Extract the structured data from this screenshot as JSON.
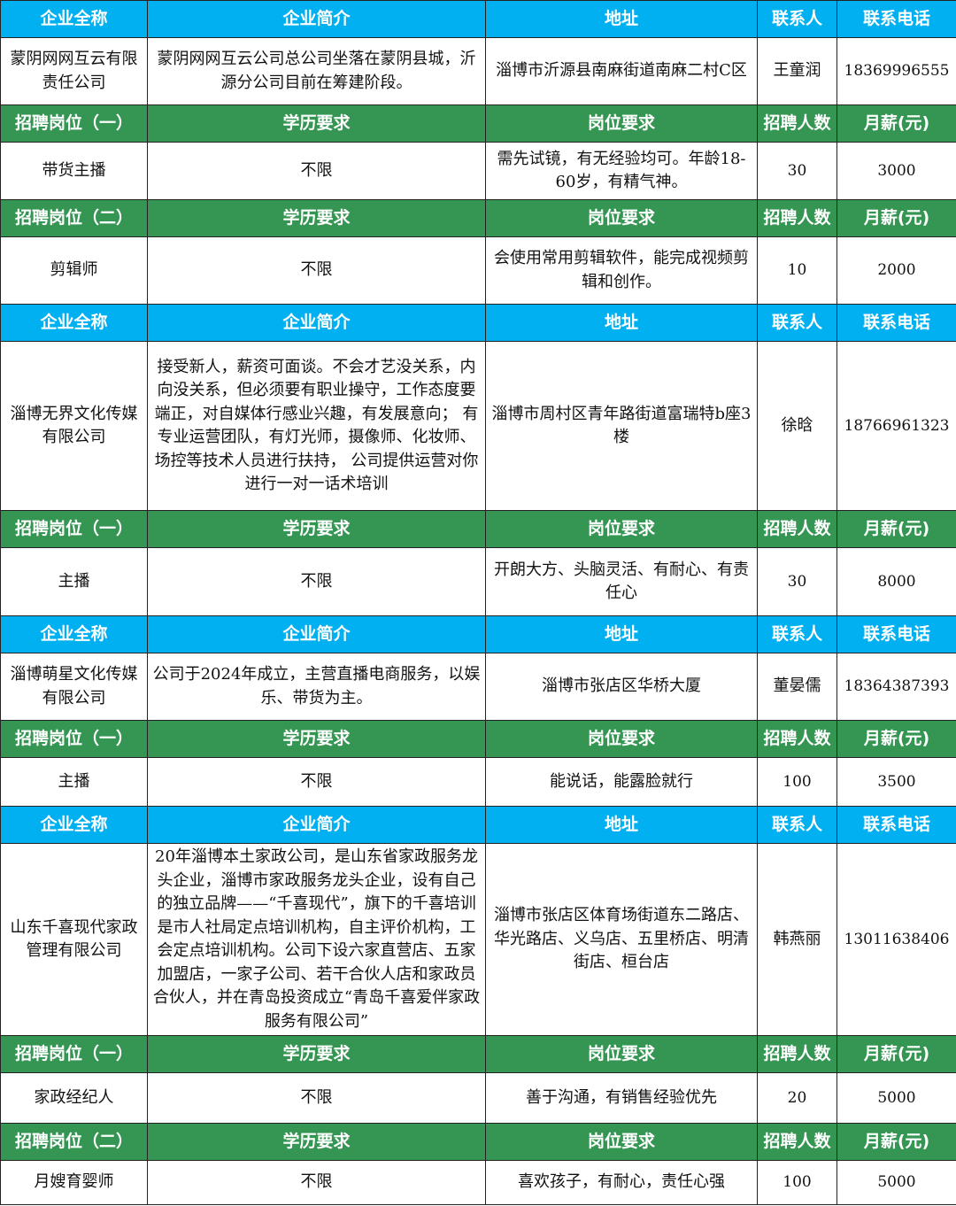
{
  "colors": {
    "company_header": "#00b0f0",
    "position_header": "#359653"
  },
  "company_header": [
    "企业全称",
    "企业简介",
    "地址",
    "联系人",
    "联系电话"
  ],
  "sections": [
    {
      "company": {
        "name": "蒙阴网网互云有限责任公司",
        "intro": "蒙阴网网互云公司总公司坐落在蒙阴县城，沂源分公司目前在筹建阶段。",
        "address": "淄博市沂源县南麻街道南麻二村C区",
        "contact": "王童润",
        "phone": "18369996555"
      },
      "positions": [
        {
          "header": [
            "招聘岗位（一）",
            "学历要求",
            "岗位要求",
            "招聘人数",
            "月薪(元)"
          ],
          "row": [
            "带货主播",
            "不限",
            "需先试镜，有无经验均可。年龄18-60岁，有精气神。",
            "30",
            "3000"
          ]
        },
        {
          "header": [
            "招聘岗位（二）",
            "学历要求",
            "岗位要求",
            "招聘人数",
            "月薪(元)"
          ],
          "row": [
            "剪辑师",
            "不限",
            "会使用常用剪辑软件，能完成视频剪辑和创作。",
            "10",
            "2000"
          ]
        }
      ]
    },
    {
      "company": {
        "name": "淄博无界文化传媒有限公司",
        "intro": "接受新人，薪资可面谈。不会才艺没关系，内向没关系，但必须要有职业操守，工作态度要端正，对自媒体行感业兴趣，有发展意向； 有专业运营团队，有灯光师，摄像师、化妆师、场控等技术人员进行扶持， 公司提供运营对你进行一对一话术培训",
        "address": "淄博市周村区青年路街道富瑞特b座3楼",
        "contact": "徐晗",
        "phone": "18766961323"
      },
      "positions": [
        {
          "header": [
            "招聘岗位（一）",
            "学历要求",
            "岗位要求",
            "招聘人数",
            "月薪(元)"
          ],
          "row": [
            "主播",
            "不限",
            "开朗大方、头脑灵活、有耐心、有责任心",
            "30",
            "8000"
          ]
        }
      ]
    },
    {
      "company": {
        "name": "淄博萌星文化传媒有限公司",
        "intro": "公司于2024年成立，主营直播电商服务，以娱乐、带货为主。",
        "address": "淄博市张店区华桥大厦",
        "contact": "董晏儒",
        "phone": "18364387393"
      },
      "positions": [
        {
          "header": [
            "招聘岗位（一）",
            "学历要求",
            "岗位要求",
            "招聘人数",
            "月薪(元)"
          ],
          "row": [
            "主播",
            "不限",
            "能说话，能露脸就行",
            "100",
            "3500"
          ]
        }
      ]
    },
    {
      "company": {
        "name": "山东千喜现代家政管理有限公司",
        "intro": "20年淄博本土家政公司，是山东省家政服务龙头企业，淄博市家政服务龙头企业，设有自己的独立品牌——“千喜现代”，旗下的千喜培训是市人社局定点培训机构，自主评价机构，工会定点培训机构。公司下设六家直营店、五家加盟店，一家子公司、若干合伙人店和家政员合伙人，并在青岛投资成立“青岛千喜爱伴家政服务有限公司”",
        "address": "淄博市张店区体育场街道东二路店、华光路店、义乌店、五里桥店、明清街店、桓台店",
        "contact": "韩燕丽",
        "phone": "13011638406"
      },
      "positions": [
        {
          "header": [
            "招聘岗位（一）",
            "学历要求",
            "岗位要求",
            "招聘人数",
            "月薪(元)"
          ],
          "row": [
            "家政经纪人",
            "不限",
            "善于沟通，有销售经验优先",
            "20",
            "5000"
          ]
        },
        {
          "header": [
            "招聘岗位（二）",
            "学历要求",
            "岗位要求",
            "招聘人数",
            "月薪(元)"
          ],
          "row": [
            "月嫂育婴师",
            "不限",
            "喜欢孩子，有耐心，责任心强",
            "100",
            "5000"
          ]
        }
      ]
    }
  ]
}
